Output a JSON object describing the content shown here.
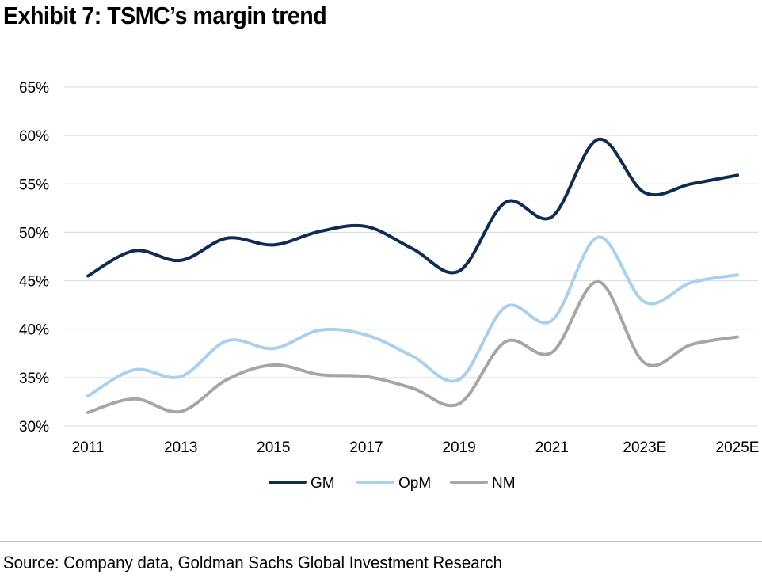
{
  "title": "Exhibit 7: TSMC’s margin trend",
  "source": "Source: Company data, Goldman Sachs Global Investment Research",
  "chart_data": {
    "type": "line",
    "title": "Exhibit 7: TSMC’s margin trend",
    "xlabel": "",
    "ylabel": "",
    "x": [
      "2011",
      "2012",
      "2013",
      "2014",
      "2015",
      "2016",
      "2017",
      "2018",
      "2019",
      "2020",
      "2021",
      "2022",
      "2023E",
      "2024E",
      "2025E"
    ],
    "x_tick_labels": [
      "2011",
      "2013",
      "2015",
      "2017",
      "2019",
      "2021",
      "2023E",
      "2025E"
    ],
    "y_tick_labels": [
      "30%",
      "35%",
      "40%",
      "45%",
      "50%",
      "55%",
      "60%",
      "65%"
    ],
    "ylim": [
      30,
      65
    ],
    "y_unit": "%",
    "grid": "horizontal",
    "legend_position": "bottom",
    "series": [
      {
        "name": "GM",
        "color": "#0f2d52",
        "values": [
          45.5,
          48.1,
          47.1,
          49.4,
          48.7,
          50.1,
          50.6,
          48.3,
          46.0,
          53.1,
          51.6,
          59.6,
          54.1,
          55.0,
          55.9
        ]
      },
      {
        "name": "OpM",
        "color": "#a9d1ef",
        "values": [
          33.1,
          35.8,
          35.1,
          38.8,
          38.0,
          39.9,
          39.4,
          37.2,
          34.8,
          42.3,
          40.9,
          49.5,
          42.8,
          44.8,
          45.6
        ]
      },
      {
        "name": "NM",
        "color": "#a6a6a6",
        "values": [
          31.4,
          32.8,
          31.5,
          34.8,
          36.3,
          35.3,
          35.1,
          33.9,
          32.3,
          38.7,
          37.6,
          44.9,
          36.5,
          38.4,
          39.2
        ]
      }
    ]
  }
}
